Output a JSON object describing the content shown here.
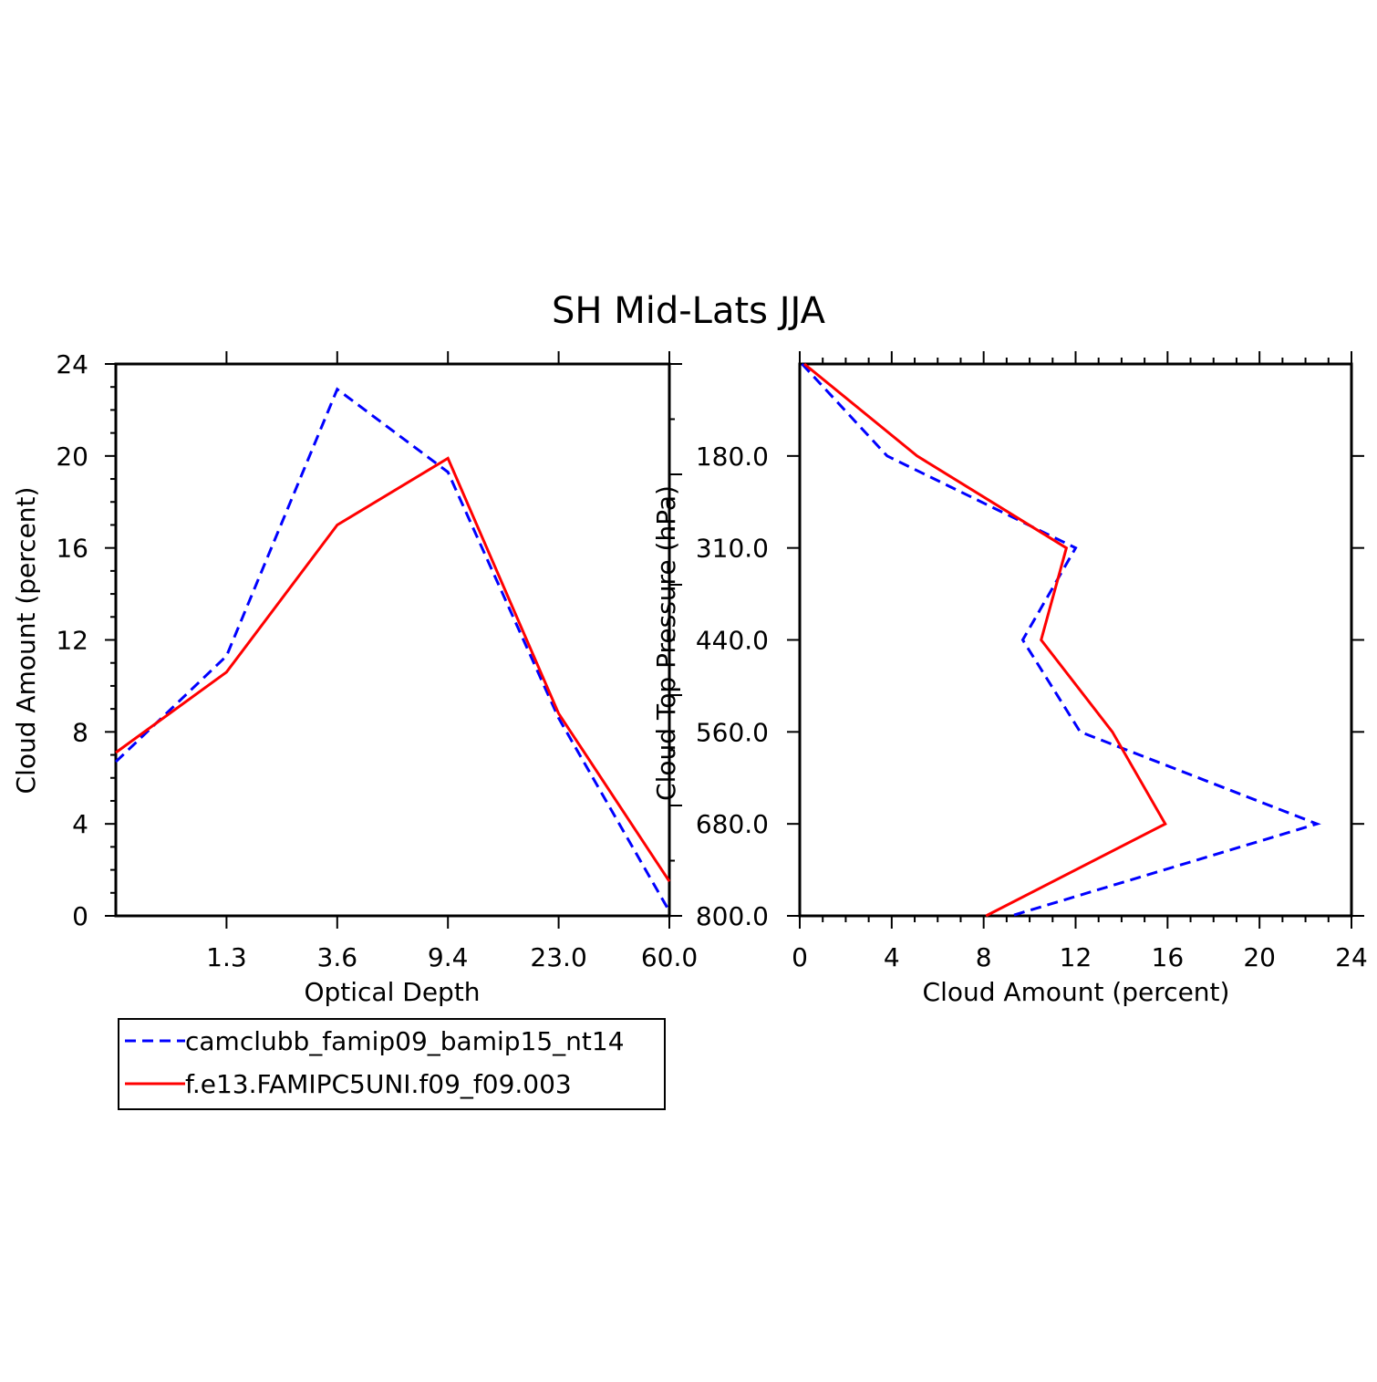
{
  "title": "SH Mid-Lats JJA",
  "legend": {
    "entries": [
      {
        "label": "camclubb_famip09_bamip15_nt14",
        "color": "#0000ff",
        "dash": "dashed"
      },
      {
        "label": "f.e13.FAMIPC5UNI.f09_f09.003",
        "color": "#ff0000",
        "dash": "solid"
      }
    ]
  },
  "chart_data": [
    {
      "type": "line",
      "xlabel": "Optical Depth",
      "ylabel": "Cloud Amount (percent)",
      "x_tick_labels": [
        "1.3",
        "3.6",
        "9.4",
        "23.0",
        "60.0"
      ],
      "y_ticks": [
        0,
        4,
        8,
        12,
        16,
        20,
        24
      ],
      "ylim": [
        0,
        24
      ],
      "x_bin_index": [
        0,
        1,
        2,
        3,
        4,
        5
      ],
      "series": [
        {
          "name": "camclubb_famip09_bamip15_nt14",
          "color": "#0000ff",
          "dash": "dashed",
          "values": [
            6.7,
            11.3,
            22.9,
            19.3,
            8.6,
            0.2
          ]
        },
        {
          "name": "f.e13.FAMIPC5UNI.f09_f09.003",
          "color": "#ff0000",
          "dash": "solid",
          "values": [
            7.1,
            10.6,
            17.0,
            19.9,
            8.8,
            1.5
          ]
        }
      ]
    },
    {
      "type": "line",
      "xlabel": "Cloud Amount (percent)",
      "ylabel": "Cloud Top Pressure (hPa)",
      "x_ticks": [
        0,
        4,
        8,
        12,
        16,
        20,
        24
      ],
      "xlim": [
        0,
        24
      ],
      "y_tick_labels": [
        "180.0",
        "310.0",
        "440.0",
        "560.0",
        "680.0",
        "800.0"
      ],
      "y_bin_index": [
        0,
        1,
        2,
        3,
        4,
        5,
        6
      ],
      "series": [
        {
          "name": "camclubb_famip09_bamip15_nt14",
          "color": "#0000ff",
          "dash": "dashed",
          "values": [
            0.1,
            3.8,
            12.0,
            9.7,
            12.2,
            22.5,
            9.2
          ]
        },
        {
          "name": "f.e13.FAMIPC5UNI.f09_f09.003",
          "color": "#ff0000",
          "dash": "solid",
          "values": [
            0.2,
            5.1,
            11.6,
            10.5,
            13.6,
            15.9,
            8.1
          ]
        }
      ]
    }
  ]
}
